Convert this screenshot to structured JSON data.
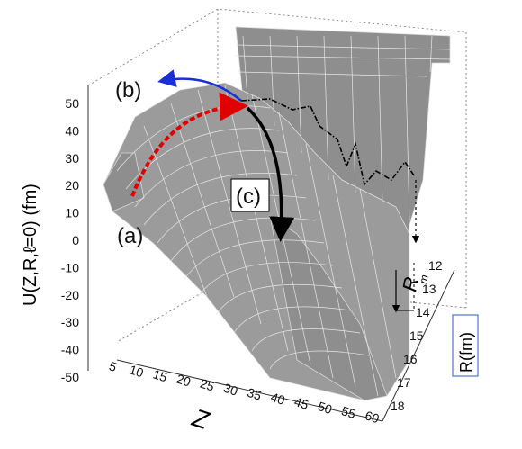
{
  "chart_data": {
    "type": "surface3d",
    "zlabel": "U(Z,R,ℓ=0) (fm)",
    "xlabel": "Z",
    "ylabel": "R(fm)",
    "z_ticks": [
      "50",
      "40",
      "30",
      "20",
      "10",
      "0",
      "-10",
      "-20",
      "-30",
      "-40",
      "-50"
    ],
    "x_ticks": [
      "5",
      "10",
      "15",
      "20",
      "25",
      "30",
      "35",
      "40",
      "45",
      "50",
      "55",
      "60"
    ],
    "y_ticks": [
      "12",
      "13",
      "14",
      "15",
      "16",
      "17",
      "18"
    ],
    "zlim": [
      -50,
      50
    ],
    "xlim": [
      5,
      60
    ],
    "ylim": [
      12,
      18
    ],
    "annotations": {
      "a": "(a)",
      "b": "(b)",
      "c": "(c)",
      "rm": "R",
      "rm_sub": "m"
    },
    "colors": {
      "surface": "#9b9b9b",
      "path_a": "#e00000",
      "path_b": "#1a2fd6",
      "path_c": "#000000",
      "ylabel_box": "#4f73c9"
    }
  }
}
